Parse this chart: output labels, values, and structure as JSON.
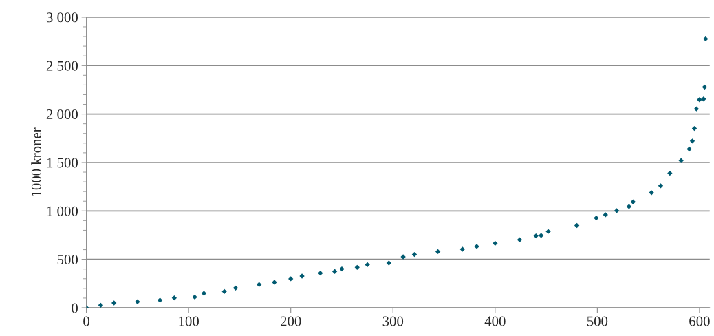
{
  "chart_data": {
    "type": "scatter",
    "ylabel": "1000 kroner",
    "marker": "diamond",
    "grid": "y",
    "xlim": [
      0,
      610
    ],
    "xticks": [
      0,
      100,
      200,
      300,
      400,
      500,
      600
    ],
    "ylim": [
      0,
      3000
    ],
    "yticks": [
      {
        "value": 0,
        "label": "0"
      },
      {
        "value": 500,
        "label": "500"
      },
      {
        "value": 1000,
        "label": "1 000"
      },
      {
        "value": 1500,
        "label": "1 500"
      },
      {
        "value": 2000,
        "label": "2 000"
      },
      {
        "value": 2500,
        "label": "2 500"
      },
      {
        "value": 3000,
        "label": "3 000"
      }
    ],
    "series": [
      {
        "color": "#005a70",
        "x": [
          0,
          14,
          27,
          50,
          72,
          86,
          106,
          115,
          135,
          146,
          169,
          184,
          200,
          211,
          229,
          243,
          250,
          265,
          275,
          296,
          310,
          321,
          344,
          368,
          382,
          400,
          424,
          440,
          445,
          452,
          480,
          499,
          508,
          519,
          531,
          535,
          553,
          562,
          571,
          582,
          590,
          593,
          595,
          597,
          600,
          604,
          605,
          606
        ],
        "values": [
          0,
          26,
          50,
          62,
          78,
          102,
          111,
          149,
          168,
          204,
          240,
          263,
          299,
          327,
          358,
          375,
          401,
          417,
          445,
          462,
          526,
          550,
          580,
          604,
          633,
          665,
          702,
          742,
          746,
          788,
          849,
          927,
          960,
          1003,
          1045,
          1093,
          1188,
          1259,
          1389,
          1519,
          1638,
          1721,
          1851,
          2053,
          2148,
          2155,
          2278,
          2776
        ]
      }
    ]
  }
}
